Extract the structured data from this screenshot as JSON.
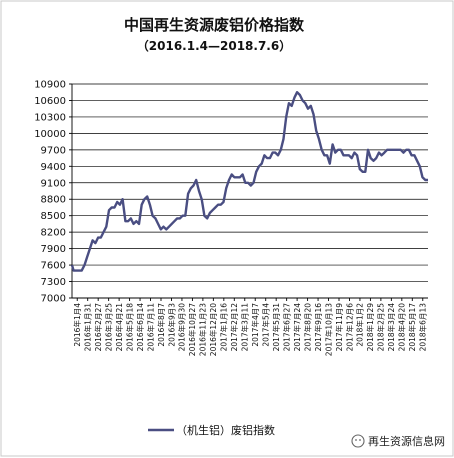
{
  "chart_data": {
    "type": "line",
    "title": "中国再生资源废铝价格指数",
    "subtitle": "（2016.1.4—2018.7.6）",
    "ylim": [
      7000,
      10900
    ],
    "yticks": [
      7000,
      7300,
      7600,
      7900,
      8200,
      8500,
      8800,
      9100,
      9400,
      9700,
      10000,
      10300,
      10600,
      10900
    ],
    "grid": "horizontal",
    "legend_position": "bottom-left",
    "series_color": "#4a4e82",
    "watermark": "再生资源信息网",
    "x_tick_labels": [
      "2016年1月4",
      "2016年1月31",
      "2016年2月27",
      "2016年3月25",
      "2016年4月21",
      "2016年5月18",
      "2016年6月14",
      "2016年7月11",
      "2016年8月7",
      "2016年9月3",
      "2016年9月30",
      "2016年10月27",
      "2016年11月23",
      "2016年12月20",
      "2017年1月16",
      "2017年2月12",
      "2017年3月11",
      "2017年4月7",
      "2017年5月4",
      "2017年5月31",
      "2017年6月27",
      "2017年7月24",
      "2017年8月20",
      "2017年9月16",
      "2017年10月13",
      "2017年11月9",
      "2017年12月6",
      "2018年1月2",
      "2018年1月29",
      "2018年2月25",
      "2018年3月24",
      "2018年4月20",
      "2018年5月17",
      "2018年6月13"
    ],
    "series": [
      {
        "name": "（机生铝）废铝指数",
        "x": [
          "2016-01-04",
          "2016-01-08",
          "2016-01-15",
          "2016-01-22",
          "2016-01-29",
          "2016-02-05",
          "2016-02-12",
          "2016-02-19",
          "2016-02-26",
          "2016-03-04",
          "2016-03-11",
          "2016-03-18",
          "2016-03-25",
          "2016-04-01",
          "2016-04-08",
          "2016-04-15",
          "2016-04-22",
          "2016-04-29",
          "2016-05-06",
          "2016-05-13",
          "2016-05-20",
          "2016-05-27",
          "2016-06-03",
          "2016-06-10",
          "2016-06-17",
          "2016-06-24",
          "2016-07-01",
          "2016-07-08",
          "2016-07-15",
          "2016-07-22",
          "2016-07-29",
          "2016-08-05",
          "2016-08-12",
          "2016-08-19",
          "2016-08-26",
          "2016-09-02",
          "2016-09-09",
          "2016-09-16",
          "2016-09-23",
          "2016-09-30",
          "2016-10-07",
          "2016-10-14",
          "2016-10-21",
          "2016-10-28",
          "2016-11-04",
          "2016-11-11",
          "2016-11-18",
          "2016-11-25",
          "2016-12-02",
          "2016-12-09",
          "2016-12-16",
          "2016-12-23",
          "2016-12-30",
          "2017-01-06",
          "2017-01-13",
          "2017-01-20",
          "2017-01-27",
          "2017-02-03",
          "2017-02-10",
          "2017-02-17",
          "2017-02-24",
          "2017-03-03",
          "2017-03-10",
          "2017-03-17",
          "2017-03-24",
          "2017-03-31",
          "2017-04-07",
          "2017-04-14",
          "2017-04-21",
          "2017-04-28",
          "2017-05-05",
          "2017-05-12",
          "2017-05-19",
          "2017-05-26",
          "2017-06-02",
          "2017-06-09",
          "2017-06-16",
          "2017-06-23",
          "2017-06-30",
          "2017-07-07",
          "2017-07-14",
          "2017-07-21",
          "2017-07-28",
          "2017-08-04",
          "2017-08-11",
          "2017-08-18",
          "2017-08-25",
          "2017-09-01",
          "2017-09-08",
          "2017-09-15",
          "2017-09-22",
          "2017-09-29",
          "2017-10-06",
          "2017-10-13",
          "2017-10-20",
          "2017-10-27",
          "2017-11-03",
          "2017-11-10",
          "2017-11-17",
          "2017-11-24",
          "2017-12-01",
          "2017-12-08",
          "2017-12-15",
          "2017-12-22",
          "2017-12-29",
          "2018-01-05",
          "2018-01-12",
          "2018-01-19",
          "2018-01-26",
          "2018-02-02",
          "2018-02-09",
          "2018-02-16",
          "2018-02-23",
          "2018-03-02",
          "2018-03-09",
          "2018-03-16",
          "2018-03-23",
          "2018-03-30",
          "2018-04-06",
          "2018-04-13",
          "2018-04-20",
          "2018-04-27",
          "2018-05-04",
          "2018-05-11",
          "2018-05-18",
          "2018-05-25",
          "2018-06-01",
          "2018-06-08",
          "2018-06-15",
          "2018-06-22",
          "2018-06-29",
          "2018-07-06"
        ],
        "values": [
          7600,
          7500,
          7500,
          7500,
          7500,
          7600,
          7750,
          7900,
          8050,
          8000,
          8100,
          8100,
          8200,
          8300,
          8600,
          8650,
          8650,
          8750,
          8700,
          8800,
          8400,
          8400,
          8450,
          8350,
          8400,
          8350,
          8700,
          8800,
          8850,
          8700,
          8500,
          8450,
          8350,
          8250,
          8300,
          8250,
          8300,
          8350,
          8400,
          8450,
          8450,
          8500,
          8500,
          8900,
          9000,
          9050,
          9150,
          8950,
          8800,
          8500,
          8450,
          8550,
          8600,
          8650,
          8700,
          8700,
          8750,
          9000,
          9150,
          9250,
          9200,
          9200,
          9200,
          9250,
          9100,
          9100,
          9050,
          9100,
          9300,
          9400,
          9450,
          9600,
          9550,
          9550,
          9650,
          9650,
          9600,
          9700,
          9900,
          10300,
          10550,
          10500,
          10650,
          10750,
          10700,
          10600,
          10550,
          10450,
          10500,
          10350,
          10050,
          9900,
          9700,
          9600,
          9600,
          9450,
          9800,
          9650,
          9700,
          9700,
          9600,
          9600,
          9600,
          9550,
          9650,
          9600,
          9350,
          9300,
          9300,
          9700,
          9550,
          9500,
          9550,
          9650,
          9600,
          9650,
          9700,
          9700,
          9700,
          9700,
          9700,
          9700,
          9650,
          9700,
          9700,
          9600,
          9600,
          9500,
          9400,
          9200,
          9150,
          9150
        ]
      }
    ]
  }
}
